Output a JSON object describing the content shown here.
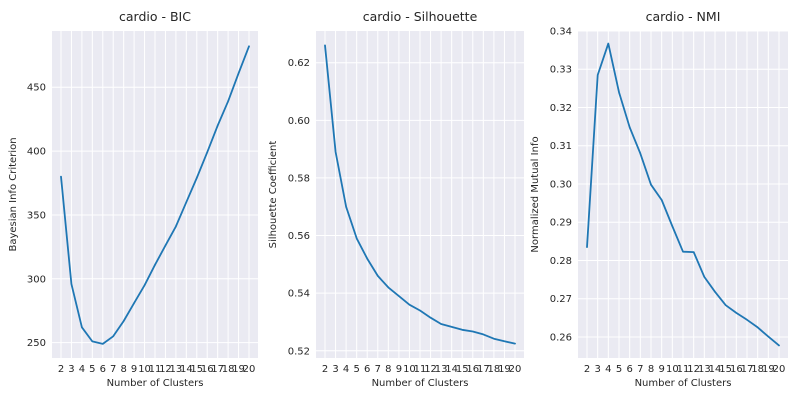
{
  "chart_data": [
    {
      "type": "line",
      "title": "cardio - BIC",
      "xlabel": "Number of Clusters",
      "ylabel": "Bayesian Info Criterion",
      "x": [
        2,
        3,
        4,
        5,
        6,
        7,
        8,
        9,
        10,
        11,
        12,
        13,
        14,
        15,
        16,
        17,
        18,
        19,
        20
      ],
      "x_tick_labels": [
        "2",
        "3",
        "4",
        "5",
        "6",
        "7",
        "8",
        "9",
        "10",
        "11",
        "12",
        "13",
        "14",
        "15",
        "16",
        "17",
        "18",
        "19",
        "20"
      ],
      "series": [
        {
          "values": [
            380,
            296,
            262,
            251,
            249,
            255,
            267,
            281,
            295,
            311,
            326,
            341,
            360,
            379,
            399,
            420,
            439,
            461,
            482
          ],
          "color": "#1f77b4"
        }
      ],
      "ylim": [
        238,
        494
      ],
      "y_ticks": [
        250,
        300,
        350,
        400,
        450
      ],
      "y_tick_labels": [
        "250",
        "300",
        "350",
        "400",
        "450"
      ],
      "grid": true
    },
    {
      "type": "line",
      "title": "cardio - Silhouette",
      "xlabel": "Number of Clusters",
      "ylabel": "Silhouette Coefficient",
      "x": [
        2,
        3,
        4,
        5,
        6,
        7,
        8,
        9,
        10,
        11,
        12,
        13,
        14,
        15,
        16,
        17,
        18,
        19,
        20
      ],
      "x_tick_labels": [
        "2",
        "3",
        "4",
        "5",
        "6",
        "7",
        "8",
        "9",
        "10",
        "11",
        "12",
        "13",
        "14",
        "15",
        "16",
        "17",
        "18",
        "19",
        "20"
      ],
      "series": [
        {
          "values": [
            0.626,
            0.589,
            0.57,
            0.559,
            0.552,
            0.546,
            0.542,
            0.539,
            0.536,
            0.534,
            0.5315,
            0.5293,
            0.5283,
            0.5273,
            0.5267,
            0.5257,
            0.5242,
            0.5233,
            0.5225
          ],
          "color": "#1f77b4"
        }
      ],
      "ylim": [
        0.5175,
        0.631
      ],
      "y_ticks": [
        0.52,
        0.54,
        0.56,
        0.58,
        0.6,
        0.62
      ],
      "y_tick_labels": [
        "0.52",
        "0.54",
        "0.56",
        "0.58",
        "0.60",
        "0.62"
      ],
      "grid": true
    },
    {
      "type": "line",
      "title": "cardio - NMI",
      "xlabel": "Number of Clusters",
      "ylabel": "Normalized Mutual Info",
      "x": [
        2,
        3,
        4,
        5,
        6,
        7,
        8,
        9,
        10,
        11,
        12,
        13,
        14,
        15,
        16,
        17,
        18,
        19,
        20
      ],
      "x_tick_labels": [
        "2",
        "3",
        "4",
        "5",
        "6",
        "7",
        "8",
        "9",
        "10",
        "11",
        "12",
        "13",
        "14",
        "15",
        "16",
        "17",
        "18",
        "19",
        "20"
      ],
      "series": [
        {
          "values": [
            0.2835,
            0.3285,
            0.3367,
            0.324,
            0.3148,
            0.308,
            0.2998,
            0.2958,
            0.289,
            0.2823,
            0.2822,
            0.2757,
            0.2718,
            0.2683,
            0.2663,
            0.2645,
            0.2625,
            0.2601,
            0.2578
          ],
          "color": "#1f77b4"
        }
      ],
      "ylim": [
        0.2545,
        0.34
      ],
      "y_ticks": [
        0.26,
        0.27,
        0.28,
        0.29,
        0.3,
        0.31,
        0.32,
        0.33,
        0.34
      ],
      "y_tick_labels": [
        "0.26",
        "0.27",
        "0.28",
        "0.29",
        "0.30",
        "0.31",
        "0.32",
        "0.33",
        "0.34"
      ],
      "grid": true
    }
  ]
}
